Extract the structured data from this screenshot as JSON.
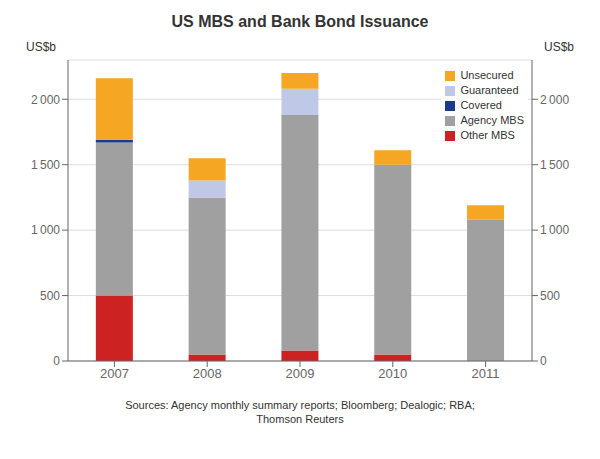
{
  "chart_data": {
    "type": "bar",
    "title": "US MBS and Bank Bond Issuance",
    "ylabel": "US$b",
    "y2label": "US$b",
    "categories": [
      "2007",
      "2008",
      "2009",
      "2010",
      "2011"
    ],
    "series": [
      {
        "name": "Other MBS",
        "color": "#cc2222",
        "values": [
          500,
          50,
          80,
          50,
          0
        ]
      },
      {
        "name": "Agency MBS",
        "color": "#a0a0a0",
        "values": [
          1170,
          1200,
          1800,
          1450,
          1080
        ]
      },
      {
        "name": "Covered",
        "color": "#1a3a8c",
        "values": [
          20,
          0,
          0,
          0,
          0
        ]
      },
      {
        "name": "Guaranteed",
        "color": "#c0c8e8",
        "values": [
          0,
          130,
          200,
          0,
          0
        ]
      },
      {
        "name": "Unsecured",
        "color": "#f5a623",
        "values": [
          470,
          170,
          120,
          110,
          110
        ]
      }
    ],
    "stacked": true,
    "ylim": [
      0,
      2300
    ],
    "yticks": [
      0,
      500,
      {
        "value": 1000,
        "label": "1 000"
      },
      {
        "value": 1500,
        "label": "1 500"
      },
      {
        "value": 2000,
        "label": "2 000"
      }
    ],
    "y2lim": [
      0,
      2300
    ],
    "y2ticks": [
      0,
      500,
      {
        "value": 1000,
        "label": "1 000"
      },
      {
        "value": 1500,
        "label": "1 500"
      },
      {
        "value": 2000,
        "label": "2 000"
      }
    ],
    "grid": true,
    "legend": "upper right",
    "source": "Sources: Agency monthly summary reports; Bloomberg; Dealogic; RBA;\nThomson Reuters"
  }
}
